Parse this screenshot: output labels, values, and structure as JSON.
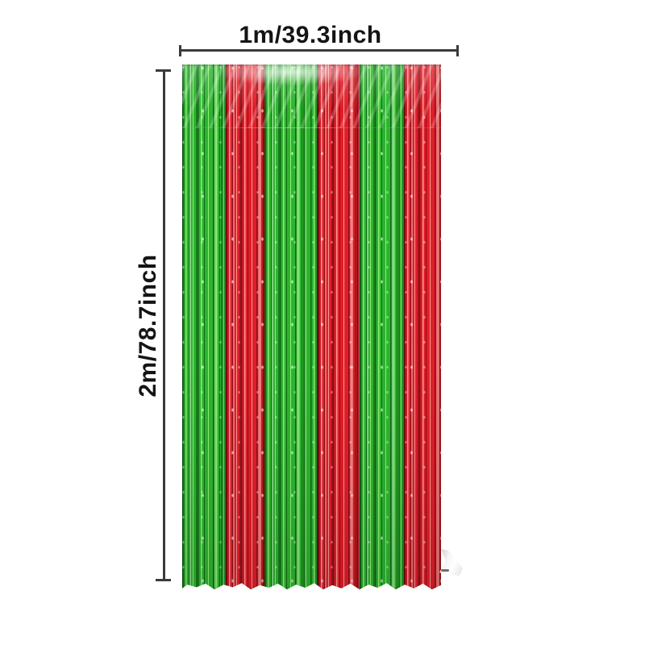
{
  "image": {
    "kind": "product-photo-with-dimension-annotations",
    "background": "#ffffff"
  },
  "dimensions": {
    "width": {
      "label": "1m/39.3inch"
    },
    "height": {
      "label": "2m/78.7inch"
    },
    "line_color": "#3b3b3b",
    "label_color": "#141414"
  },
  "curtain": {
    "description": "red and green metallic foil fringe tinsel curtain",
    "stripes": [
      "green",
      "red",
      "green",
      "red",
      "green",
      "red"
    ],
    "stripe_widths": [
      54,
      48,
      66,
      52,
      55,
      46
    ],
    "colors": {
      "green_base": "#2eb331",
      "green_light": "#8af06f",
      "green_dark": "#0b6b11",
      "red_base": "#e01e2a",
      "red_light": "#ff9a93",
      "red_dark": "#8c0e13"
    },
    "accents": {
      "foil_curl": "#f0f0f0"
    }
  }
}
